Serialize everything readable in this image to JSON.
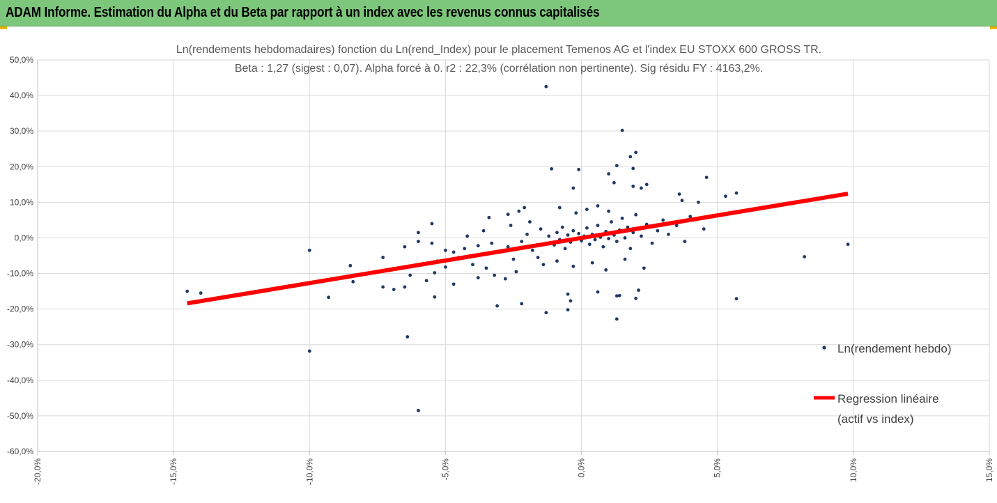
{
  "banner": {
    "title": "ADAM Informe. Estimation du Alpha et du Beta par rapport à un index avec les revenus connus capitalisés",
    "background": "#7dc77d",
    "corner_color": "#f0b400"
  },
  "chart_data": {
    "type": "scatter",
    "title": "Ln(rendements hebdomadaires) fonction du Ln(rend_Index) pour le placement Temenos AG et l'index EU STOXX 600 GROSS TR.",
    "subtitle": "Beta : 1,27 (sigest : 0,07). Alpha forcé à 0. r2 : 22,3% (corrélation non pertinente). Sig résidu FY : 4163,2%.",
    "xlabel": "",
    "ylabel": "",
    "xlim": [
      -20,
      15
    ],
    "ylim": [
      -60,
      50
    ],
    "unit": "%",
    "grid": "vertical and horizontal gridlines",
    "legend_position": "right",
    "x_ticks": [
      "-20,0%",
      "-15,0%",
      "-10,0%",
      "-5,0%",
      "0,0%",
      "5,0%",
      "10,0%",
      "15,0%"
    ],
    "x_tick_values": [
      -20,
      -15,
      -10,
      -5,
      0,
      5,
      10,
      15
    ],
    "y_ticks": [
      "50,0%",
      "40,0%",
      "30,0%",
      "20,0%",
      "10,0%",
      "0,0%",
      "-10,0%",
      "-20,0%",
      "-30,0%",
      "-40,0%",
      "-50,0%",
      "-60,0%"
    ],
    "y_tick_values": [
      50,
      40,
      30,
      20,
      10,
      0,
      -10,
      -20,
      -30,
      -40,
      -50,
      -60
    ],
    "series": [
      {
        "name": "Ln(rendement hebdo)",
        "kind": "scatter",
        "color": "#1f3864",
        "points": [
          [
            -1.3,
            42.5
          ],
          [
            1.5,
            30.2
          ],
          [
            2.0,
            24.0
          ],
          [
            1.8,
            22.8
          ],
          [
            1.3,
            20.3
          ],
          [
            -0.1,
            19.2
          ],
          [
            -1.1,
            19.4
          ],
          [
            1.9,
            19.5
          ],
          [
            4.6,
            17.0
          ],
          [
            1.0,
            18.0
          ],
          [
            2.4,
            15.0
          ],
          [
            1.2,
            15.5
          ],
          [
            2.2,
            14.0
          ],
          [
            -0.3,
            14.0
          ],
          [
            1.9,
            14.5
          ],
          [
            3.6,
            12.3
          ],
          [
            5.7,
            12.6
          ],
          [
            5.3,
            11.7
          ],
          [
            3.7,
            10.5
          ],
          [
            4.3,
            10.0
          ],
          [
            -2.1,
            8.5
          ],
          [
            -2.3,
            7.5
          ],
          [
            -3.4,
            5.7
          ],
          [
            -2.7,
            6.6
          ],
          [
            -5.5,
            4.0
          ],
          [
            -6.0,
            1.5
          ],
          [
            -6.0,
            -1.0
          ],
          [
            -6.5,
            -2.5
          ],
          [
            -5.5,
            -1.5
          ],
          [
            -5.0,
            -3.5
          ],
          [
            -4.5,
            -5.5
          ],
          [
            -4.0,
            -7.5
          ],
          [
            -3.5,
            -8.5
          ],
          [
            -3.2,
            -10.5
          ],
          [
            -2.8,
            -11.5
          ],
          [
            -2.4,
            -9.5
          ],
          [
            -3.8,
            -11.2
          ],
          [
            -4.7,
            -13.0
          ],
          [
            -5.4,
            -9.8
          ],
          [
            -6.3,
            -10.5
          ],
          [
            -6.5,
            -13.8
          ],
          [
            -5.4,
            -16.6
          ],
          [
            -3.1,
            -19.1
          ],
          [
            -2.2,
            -18.5
          ],
          [
            -1.3,
            -21.0
          ],
          [
            -0.5,
            -20.2
          ],
          [
            -0.4,
            -17.7
          ],
          [
            -0.5,
            -15.8
          ],
          [
            0.6,
            -15.2
          ],
          [
            1.3,
            -16.3
          ],
          [
            1.4,
            -16.2
          ],
          [
            2.0,
            -17.0
          ],
          [
            2.1,
            -14.7
          ],
          [
            1.3,
            -22.8
          ],
          [
            5.7,
            -17.1
          ],
          [
            8.2,
            -5.3
          ],
          [
            9.8,
            -1.8
          ],
          [
            -14.5,
            -15.0
          ],
          [
            -14.0,
            -15.5
          ],
          [
            -9.3,
            -16.7
          ],
          [
            -10.0,
            -3.5
          ],
          [
            -8.5,
            -7.8
          ],
          [
            -8.4,
            -12.3
          ],
          [
            -7.3,
            -13.8
          ],
          [
            -6.9,
            -14.5
          ],
          [
            -7.3,
            -5.5
          ],
          [
            -10.0,
            -31.8
          ],
          [
            -6.4,
            -27.8
          ],
          [
            -6.0,
            -48.5
          ],
          [
            -5.7,
            -12.0
          ],
          [
            -5.8,
            -7.2
          ],
          [
            -5.0,
            -8.2
          ],
          [
            -5.3,
            -6.5
          ],
          [
            -4.7,
            -4.0
          ],
          [
            -4.3,
            -3.0
          ],
          [
            -3.8,
            -2.2
          ],
          [
            -3.3,
            -1.5
          ],
          [
            -3.0,
            -4.0
          ],
          [
            -2.7,
            -2.5
          ],
          [
            -2.5,
            -6.0
          ],
          [
            -2.2,
            -1.0
          ],
          [
            -2.0,
            1.0
          ],
          [
            -1.8,
            -3.5
          ],
          [
            -1.6,
            -5.5
          ],
          [
            -1.5,
            2.5
          ],
          [
            -1.3,
            -1.5
          ],
          [
            -1.2,
            0.5
          ],
          [
            -1.0,
            -2.0
          ],
          [
            -0.9,
            1.5
          ],
          [
            -0.8,
            -0.5
          ],
          [
            -0.7,
            3.0
          ],
          [
            -0.6,
            -3.0
          ],
          [
            -0.5,
            0.8
          ],
          [
            -0.4,
            -1.2
          ],
          [
            -0.3,
            2.0
          ],
          [
            -0.2,
            -0.3
          ],
          [
            -0.1,
            1.2
          ],
          [
            0.0,
            -0.8
          ],
          [
            0.1,
            0.5
          ],
          [
            0.2,
            2.8
          ],
          [
            0.3,
            -1.8
          ],
          [
            0.4,
            1.0
          ],
          [
            0.5,
            -0.5
          ],
          [
            0.6,
            3.5
          ],
          [
            0.7,
            0.2
          ],
          [
            0.8,
            -2.5
          ],
          [
            0.9,
            1.8
          ],
          [
            1.0,
            -0.2
          ],
          [
            1.1,
            4.5
          ],
          [
            1.2,
            0.8
          ],
          [
            1.3,
            -1.0
          ],
          [
            1.4,
            2.2
          ],
          [
            1.5,
            5.5
          ],
          [
            1.6,
            0.0
          ],
          [
            1.7,
            3.0
          ],
          [
            1.8,
            -3.0
          ],
          [
            1.9,
            1.5
          ],
          [
            2.0,
            6.5
          ],
          [
            2.2,
            0.5
          ],
          [
            2.4,
            3.8
          ],
          [
            2.6,
            -1.5
          ],
          [
            2.8,
            2.0
          ],
          [
            3.0,
            5.0
          ],
          [
            3.2,
            1.0
          ],
          [
            3.5,
            3.5
          ],
          [
            3.8,
            -1.0
          ],
          [
            4.0,
            6.0
          ],
          [
            4.5,
            2.5
          ],
          [
            0.2,
            8.0
          ],
          [
            -0.2,
            7.0
          ],
          [
            0.6,
            9.0
          ],
          [
            -0.8,
            8.5
          ],
          [
            1.0,
            7.5
          ],
          [
            -1.4,
            -7.5
          ],
          [
            -0.9,
            -6.5
          ],
          [
            -0.3,
            -8.0
          ],
          [
            0.4,
            -7.0
          ],
          [
            0.9,
            -9.0
          ],
          [
            1.6,
            -6.0
          ],
          [
            2.3,
            -8.5
          ],
          [
            -1.9,
            4.5
          ],
          [
            -2.6,
            3.5
          ],
          [
            -3.6,
            2.0
          ],
          [
            -4.2,
            0.5
          ]
        ]
      },
      {
        "name": "Regression linéaire\n(actif vs index)",
        "kind": "line",
        "color": "#ff0000",
        "points": [
          [
            -14.5,
            -18.4
          ],
          [
            9.8,
            12.4
          ]
        ]
      }
    ],
    "legend": [
      {
        "label": "Ln(rendement hebdo)",
        "lines": [
          "Ln(rendement hebdo)"
        ]
      },
      {
        "label": "Regression linéaire (actif vs index)",
        "lines": [
          "Regression linéaire",
          "(actif vs index)"
        ]
      }
    ]
  }
}
